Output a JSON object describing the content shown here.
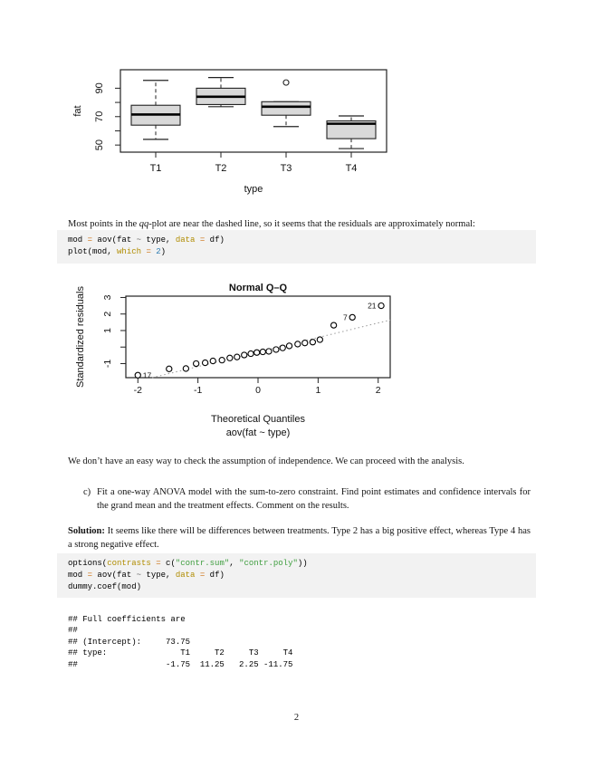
{
  "page": {
    "number": "2"
  },
  "paragraphs": {
    "qq_note": {
      "pre": "Most points in the ",
      "italic": "qq",
      "post": "-plot are near the dashed line, so it seems that the residuals are approximately normal:"
    },
    "independence": "We don’t have an easy way to check the assumption of independence. We can proceed with the analysis.",
    "item_c": {
      "marker": "c)",
      "text": "Fit a one-way ANOVA model with the sum-to-zero constraint. Find point estimates and confidence intervals for the grand mean and the treatment effects. Comment on the results."
    },
    "solution": {
      "label": "Solution:",
      "text": "It seems like there will be differences between treatments. Type 2 has a big positive effect, whereas Type 4 has a strong negative effect."
    }
  },
  "colors": {
    "plain": "#000000",
    "op": "#cc6f0e",
    "arg": "#b08c00",
    "str": "#3f9e3f",
    "num": "#2a7ab0",
    "tilde": "#666666",
    "code_bg": "#f2f2f2"
  },
  "code_blocks": [
    {
      "lines": [
        [
          [
            "mod ",
            "plain"
          ],
          [
            "=",
            "op"
          ],
          [
            " aov(fat ",
            "plain"
          ],
          [
            "~",
            "tilde"
          ],
          [
            " type, ",
            "plain"
          ],
          [
            "data",
            "arg"
          ],
          [
            " ",
            "plain"
          ],
          [
            "=",
            "op"
          ],
          [
            " df)",
            "plain"
          ]
        ],
        [
          [
            "plot(mod, ",
            "plain"
          ],
          [
            "which",
            "arg"
          ],
          [
            " ",
            "plain"
          ],
          [
            "=",
            "op"
          ],
          [
            " ",
            "plain"
          ],
          [
            "2",
            "num"
          ],
          [
            ")",
            "plain"
          ]
        ]
      ]
    },
    {
      "lines": [
        [
          [
            "options(",
            "plain"
          ],
          [
            "contrasts",
            "arg"
          ],
          [
            " ",
            "plain"
          ],
          [
            "=",
            "op"
          ],
          [
            " c(",
            "plain"
          ],
          [
            "\"contr.sum\"",
            "str"
          ],
          [
            ", ",
            "plain"
          ],
          [
            "\"contr.poly\"",
            "str"
          ],
          [
            "))",
            "plain"
          ]
        ],
        [
          [
            "mod ",
            "plain"
          ],
          [
            "=",
            "op"
          ],
          [
            " aov(fat ",
            "plain"
          ],
          [
            "~",
            "tilde"
          ],
          [
            " type, ",
            "plain"
          ],
          [
            "data",
            "arg"
          ],
          [
            " ",
            "plain"
          ],
          [
            "=",
            "op"
          ],
          [
            " df)",
            "plain"
          ]
        ],
        [
          [
            "dummy.coef(mod)",
            "plain"
          ]
        ]
      ]
    }
  ],
  "output_block": {
    "lines": [
      "## Full coefficients are",
      "##",
      "## (Intercept):     73.75",
      "## type:               T1     T2     T3     T4",
      "##                  -1.75  11.25   2.25 -11.75"
    ]
  },
  "chart_data": [
    {
      "type": "boxplot",
      "xlabel": "type",
      "ylabel": "fat",
      "categories": [
        "T1",
        "T2",
        "T3",
        "T4"
      ],
      "y_ticks": [
        50,
        60,
        70,
        80,
        90
      ],
      "y_tick_labels": [
        "50",
        "",
        "70",
        "",
        "90"
      ],
      "ylim": [
        45,
        103
      ],
      "box_fill": "#d9d9d9",
      "boxes": [
        {
          "category": "T1",
          "whisker_low": 54,
          "q1": 64,
          "median": 71.5,
          "q3": 78,
          "whisker_high": 95.5,
          "outliers": []
        },
        {
          "category": "T2",
          "whisker_low": 77,
          "q1": 78.5,
          "median": 84,
          "q3": 90,
          "whisker_high": 97.5,
          "outliers": []
        },
        {
          "category": "T3",
          "whisker_low": 63,
          "q1": 71,
          "median": 77,
          "q3": 80.5,
          "whisker_high": 80.5,
          "outliers": [
            94
          ]
        },
        {
          "category": "T4",
          "whisker_low": 47.5,
          "q1": 54.5,
          "median": 65,
          "q3": 67,
          "whisker_high": 70.5,
          "outliers": []
        }
      ]
    },
    {
      "type": "scatter",
      "title": "Normal Q–Q",
      "xlabel": "Theoretical Quantiles",
      "xlabel2": "aov(fat ~ type)",
      "ylabel": "Standardized residuals",
      "x_ticks": [
        -2,
        -1,
        0,
        1,
        2
      ],
      "y_ticks": [
        -1,
        0,
        1,
        2,
        3
      ],
      "y_tick_labels": [
        "-1",
        "",
        "1",
        "2",
        "3"
      ],
      "xlim": [
        -2.2,
        2.2
      ],
      "ylim": [
        -1.85,
        3.08
      ],
      "ref_line": {
        "style": "dotted",
        "slope": 0.88,
        "intercept": -0.3,
        "color": "#999999"
      },
      "points": [
        {
          "x": -2.0,
          "y": -1.7,
          "label": "17",
          "label_side": "right"
        },
        {
          "x": -1.48,
          "y": -1.32
        },
        {
          "x": -1.2,
          "y": -1.3
        },
        {
          "x": -1.03,
          "y": -1.0
        },
        {
          "x": -0.88,
          "y": -0.95
        },
        {
          "x": -0.75,
          "y": -0.84
        },
        {
          "x": -0.6,
          "y": -0.79
        },
        {
          "x": -0.47,
          "y": -0.66
        },
        {
          "x": -0.35,
          "y": -0.6
        },
        {
          "x": -0.23,
          "y": -0.48
        },
        {
          "x": -0.12,
          "y": -0.4
        },
        {
          "x": -0.02,
          "y": -0.33
        },
        {
          "x": 0.08,
          "y": -0.29
        },
        {
          "x": 0.18,
          "y": -0.26
        },
        {
          "x": 0.3,
          "y": -0.15
        },
        {
          "x": 0.41,
          "y": -0.05
        },
        {
          "x": 0.52,
          "y": 0.07
        },
        {
          "x": 0.66,
          "y": 0.18
        },
        {
          "x": 0.78,
          "y": 0.25
        },
        {
          "x": 0.91,
          "y": 0.3
        },
        {
          "x": 1.03,
          "y": 0.45
        },
        {
          "x": 1.26,
          "y": 1.32
        },
        {
          "x": 1.57,
          "y": 1.8,
          "label": "7",
          "label_side": "left"
        },
        {
          "x": 2.05,
          "y": 2.5,
          "label": "21",
          "label_side": "left"
        }
      ]
    }
  ]
}
